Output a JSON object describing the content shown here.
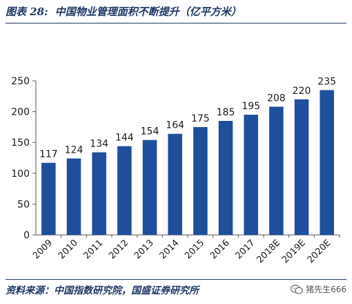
{
  "figure": {
    "number": "图表 28:",
    "title": "中国物业管理面积不断提升（亿平方米）"
  },
  "source": "资料来源：中国指数研究院，国盛证券研究所",
  "watermark": {
    "text": "猪先生666",
    "icon": "wechat-icon"
  },
  "colors": {
    "bar": "#1f4e9c",
    "title": "#1f3864",
    "rule": "#1f3864"
  },
  "chart_data": {
    "type": "bar",
    "categories": [
      "2009",
      "2010",
      "2011",
      "2012",
      "2013",
      "2014",
      "2015",
      "2016",
      "2017",
      "2018E",
      "2019E",
      "2020E"
    ],
    "values": [
      117,
      124,
      134,
      144,
      154,
      164,
      175,
      185,
      195,
      208,
      220,
      235
    ],
    "ylim": [
      0,
      250
    ],
    "yticks": [
      0,
      50,
      100,
      150,
      200,
      250
    ],
    "title": "",
    "xlabel": "",
    "ylabel": "",
    "grid": false,
    "data_labels": true,
    "x_tick_rotation": "diagonal"
  }
}
